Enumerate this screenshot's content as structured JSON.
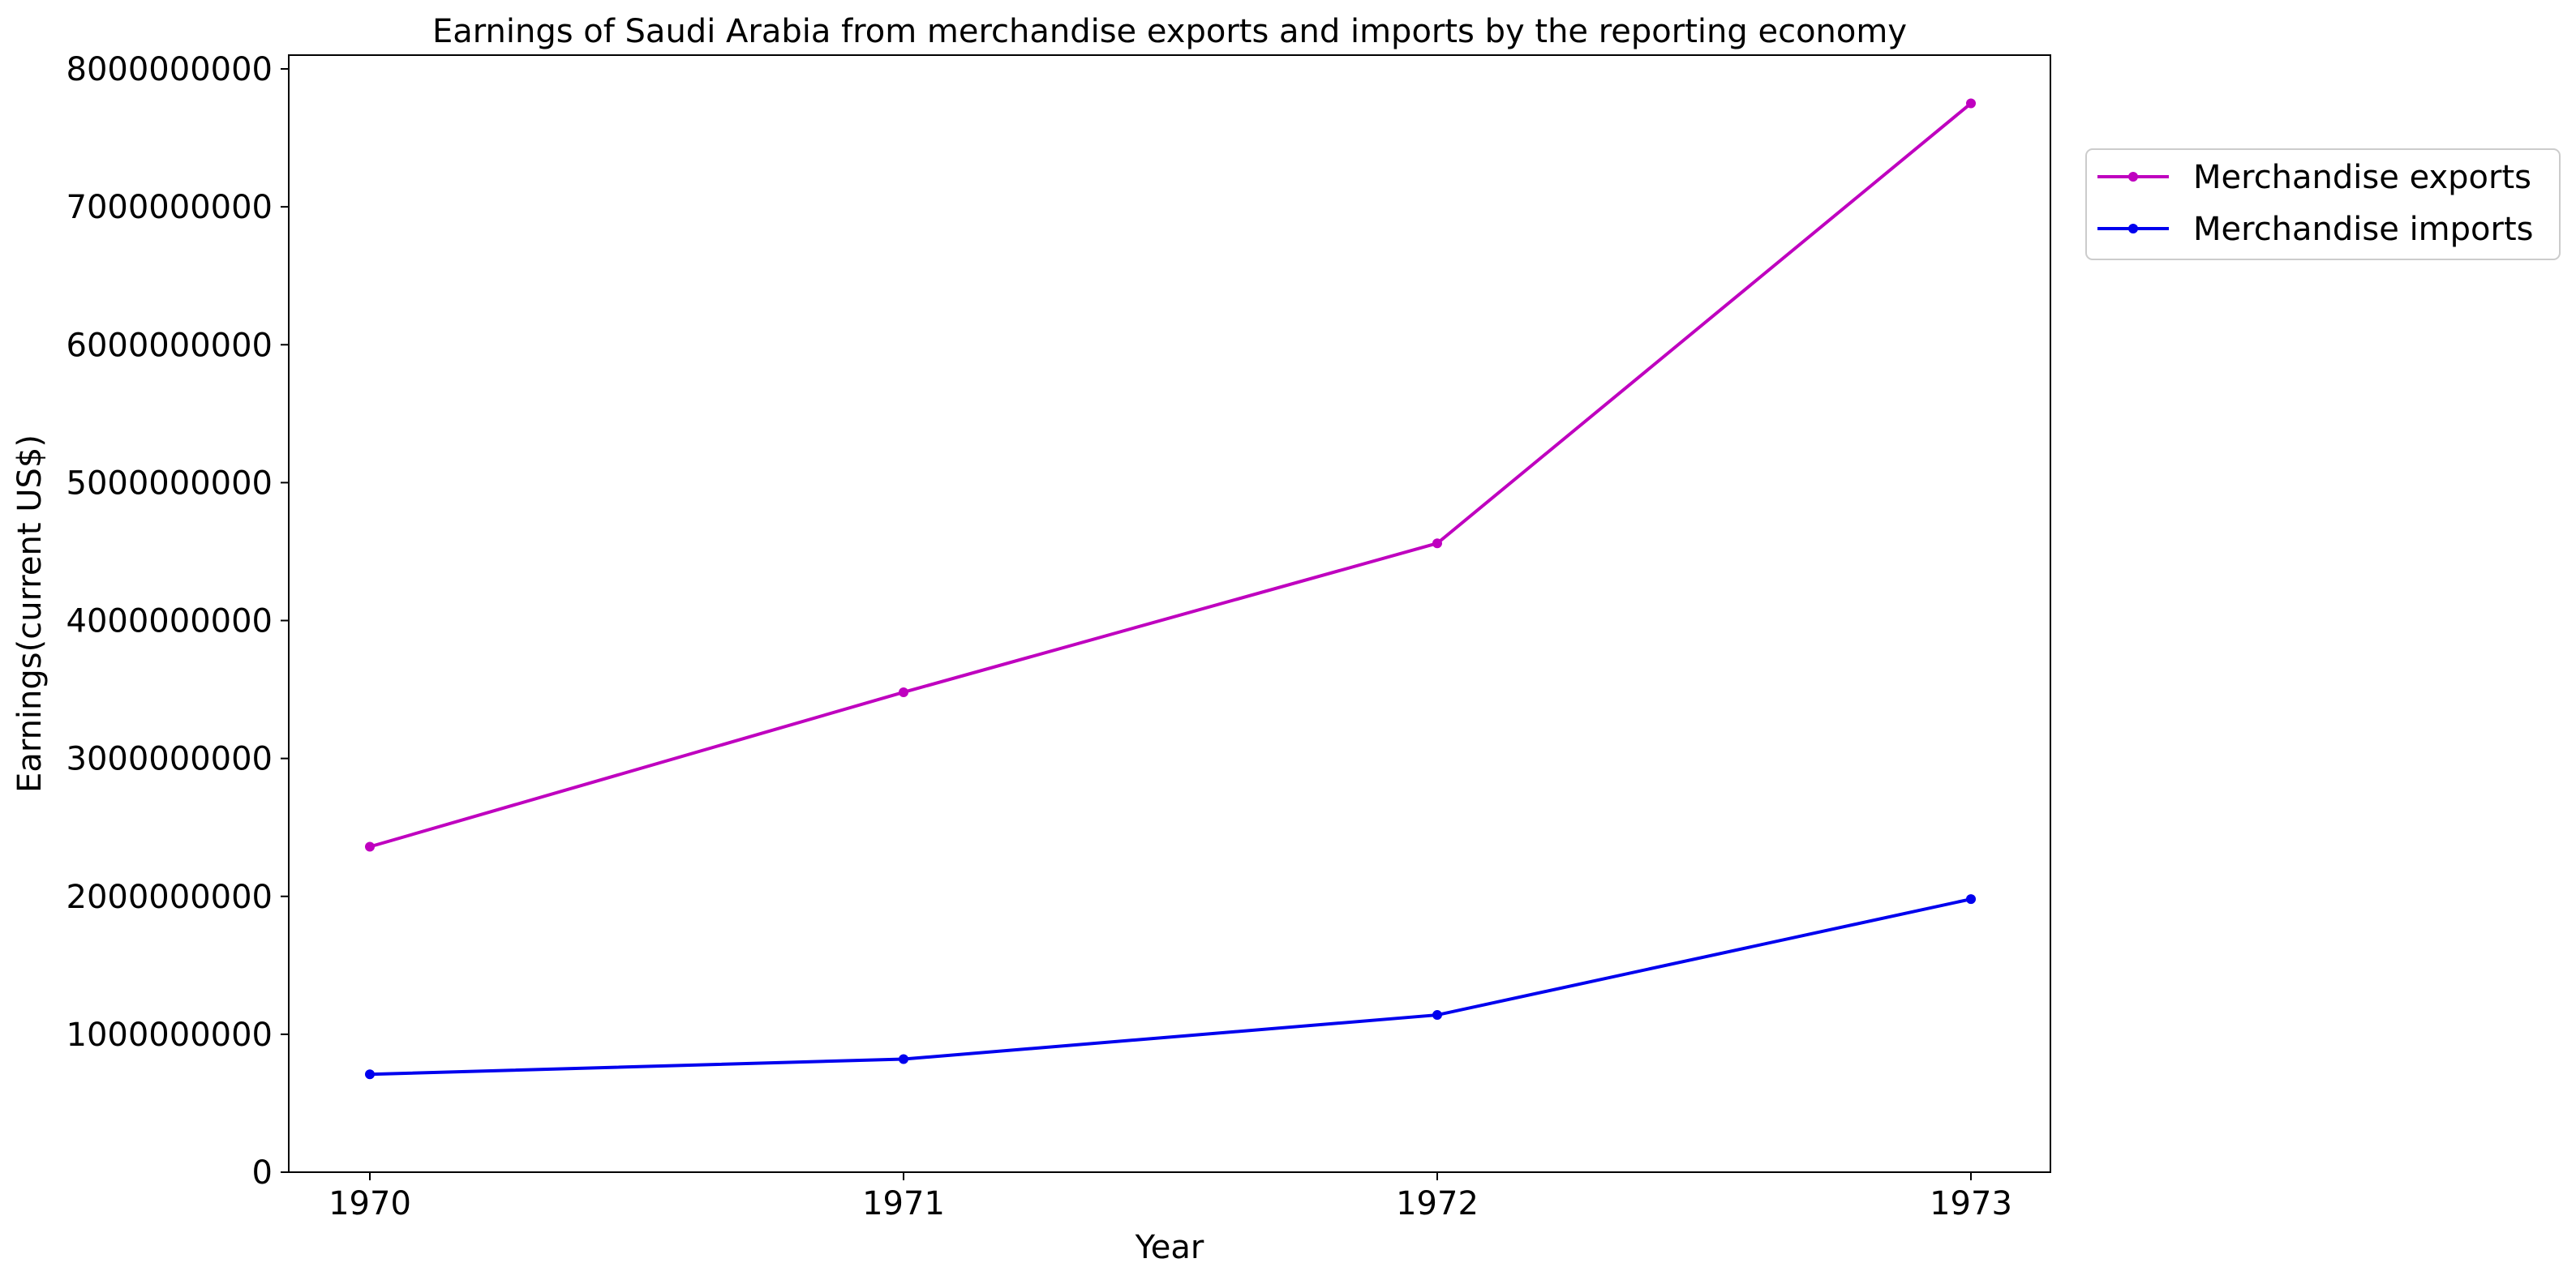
{
  "chart_data": {
    "type": "line",
    "title": "Earnings of Saudi Arabia from merchandise exports and imports by the reporting economy",
    "xlabel": "Year",
    "ylabel": "Earnings(current US$)",
    "x": [
      1970,
      1971,
      1972,
      1973
    ],
    "x_tick_labels": [
      "1970",
      "1971",
      "1972",
      "1973"
    ],
    "ylim": [
      0,
      8100000000
    ],
    "y_ticks": [
      0,
      1000000000,
      2000000000,
      3000000000,
      4000000000,
      5000000000,
      6000000000,
      7000000000,
      8000000000
    ],
    "y_tick_labels": [
      "0",
      "1000000000",
      "2000000000",
      "3000000000",
      "4000000000",
      "5000000000",
      "6000000000",
      "7000000000",
      "8000000000"
    ],
    "grid": false,
    "legend_position": "upper right outside plot",
    "series": [
      {
        "name": "Merchandise exports",
        "color": "#bf00bf",
        "values": [
          2360000000,
          3480000000,
          4560000000,
          7750000000
        ]
      },
      {
        "name": "Merchandise imports",
        "color": "#0000ee",
        "values": [
          710000000,
          820000000,
          1140000000,
          1980000000
        ]
      }
    ]
  }
}
